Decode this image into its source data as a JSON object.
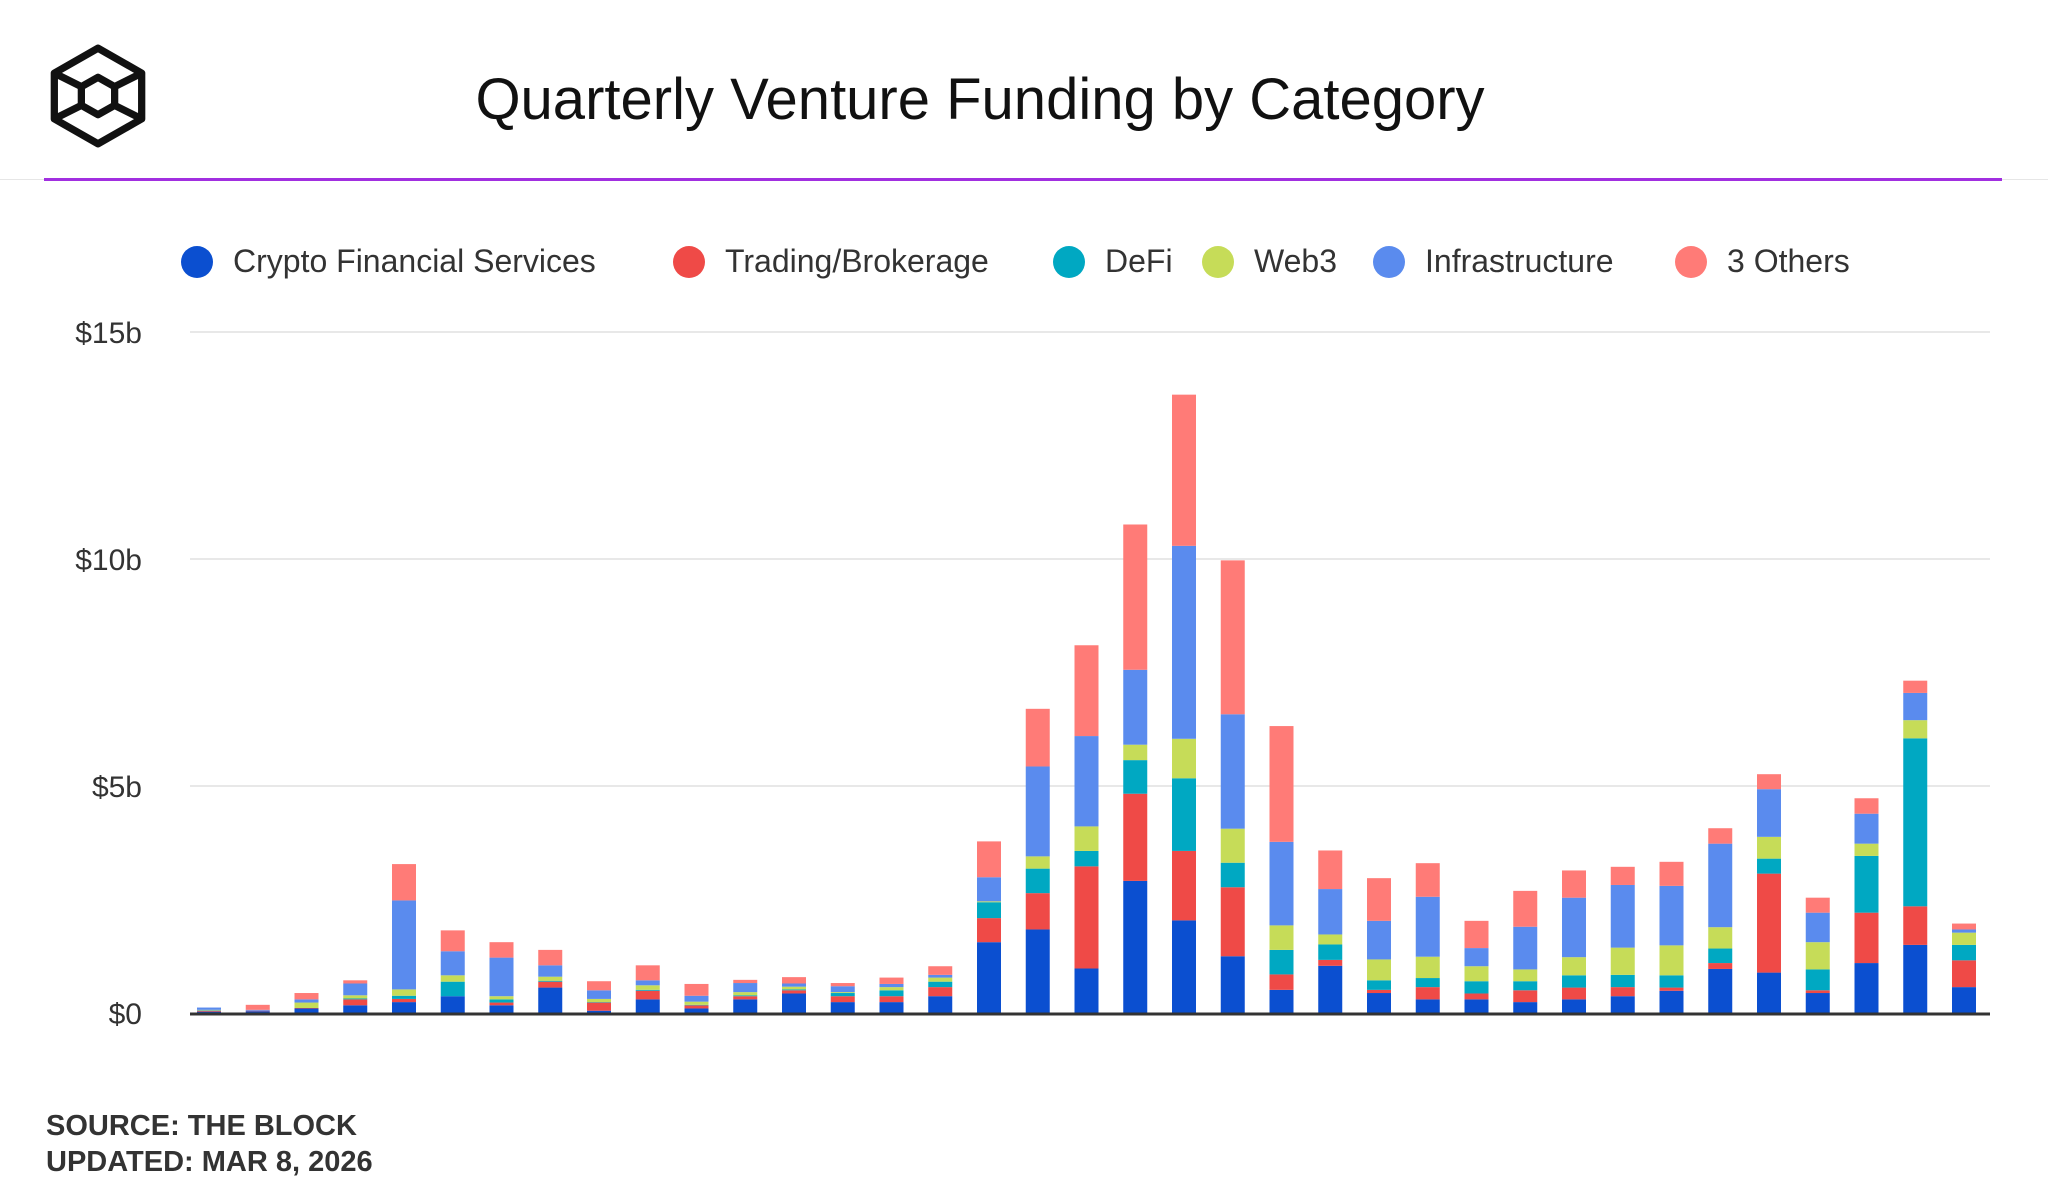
{
  "title": "Quarterly Venture Funding by Category",
  "source": {
    "line1": "SOURCE: THE BLOCK",
    "line2": "UPDATED: MAR 8, 2026"
  },
  "logo": {
    "icon": "the-block-cube-logo"
  },
  "colors": {
    "accent_rule": "#a12fe0"
  },
  "chart_data": {
    "type": "bar",
    "stacked": true,
    "title": "Quarterly Venture Funding by Category",
    "xlabel": "",
    "ylabel": "",
    "ylim": [
      0,
      15
    ],
    "yticks": [
      0,
      5,
      10,
      15
    ],
    "ytick_labels": [
      "$0",
      "$5b",
      "$10b",
      "$15b"
    ],
    "grid": true,
    "legend_position": "top",
    "units": "billions USD",
    "series": [
      {
        "name": "Crypto Financial Services",
        "color": "#0b4fd0",
        "values": [
          0.03,
          0.04,
          0.1,
          0.17,
          0.24,
          0.37,
          0.17,
          0.56,
          0.05,
          0.3,
          0.1,
          0.3,
          0.43,
          0.24,
          0.24,
          0.37,
          1.56,
          1.84,
          0.98,
          2.91,
          2.04,
          1.25,
          0.51,
          1.04,
          0.44,
          0.3,
          0.3,
          0.24,
          0.3,
          0.37,
          0.49,
          0.97,
          0.89,
          0.44,
          1.1,
          1.5,
          0.57
        ]
      },
      {
        "name": "Trading/Brokerage",
        "color": "#ef4a47",
        "values": [
          0.02,
          0.01,
          0.01,
          0.13,
          0.07,
          0.0,
          0.06,
          0.13,
          0.18,
          0.19,
          0.07,
          0.07,
          0.07,
          0.13,
          0.13,
          0.2,
          0.53,
          0.8,
          2.25,
          1.92,
          1.53,
          1.52,
          0.34,
          0.13,
          0.07,
          0.27,
          0.13,
          0.26,
          0.26,
          0.2,
          0.07,
          0.13,
          2.18,
          0.06,
          1.11,
          0.85,
          0.59
        ]
      },
      {
        "name": "DeFi",
        "color": "#00a8c2",
        "values": [
          0.01,
          0.0,
          0.0,
          0.02,
          0.07,
          0.32,
          0.07,
          0.02,
          0.01,
          0.02,
          0.01,
          0.02,
          0.02,
          0.07,
          0.13,
          0.12,
          0.35,
          0.54,
          0.34,
          0.74,
          1.6,
          0.54,
          0.54,
          0.34,
          0.21,
          0.2,
          0.27,
          0.2,
          0.27,
          0.27,
          0.27,
          0.32,
          0.33,
          0.46,
          1.25,
          3.7,
          0.34
        ]
      },
      {
        "name": "Web3",
        "color": "#c6dc58",
        "values": [
          0.01,
          0.0,
          0.12,
          0.07,
          0.14,
          0.14,
          0.07,
          0.09,
          0.07,
          0.1,
          0.07,
          0.07,
          0.06,
          0.02,
          0.07,
          0.09,
          0.02,
          0.27,
          0.54,
          0.34,
          0.87,
          0.75,
          0.54,
          0.22,
          0.46,
          0.47,
          0.33,
          0.26,
          0.4,
          0.6,
          0.66,
          0.47,
          0.48,
          0.6,
          0.27,
          0.4,
          0.27
        ]
      },
      {
        "name": "Infrastructure",
        "color": "#5a8bee",
        "values": [
          0.05,
          0.02,
          0.07,
          0.26,
          1.96,
          0.53,
          0.85,
          0.25,
          0.19,
          0.11,
          0.13,
          0.2,
          0.07,
          0.13,
          0.07,
          0.06,
          0.53,
          1.98,
          1.99,
          1.65,
          4.25,
          2.52,
          1.84,
          1.0,
          0.85,
          1.32,
          0.4,
          0.94,
          1.31,
          1.38,
          1.31,
          1.84,
          1.05,
          0.65,
          0.66,
          0.6,
          0.07
        ]
      },
      {
        "name": "3 Others",
        "color": "#ff7b77",
        "values": [
          0.0,
          0.11,
          0.14,
          0.07,
          0.8,
          0.46,
          0.34,
          0.34,
          0.2,
          0.33,
          0.26,
          0.07,
          0.14,
          0.07,
          0.14,
          0.19,
          0.79,
          1.27,
          2.0,
          3.2,
          3.33,
          3.39,
          2.55,
          0.85,
          0.94,
          0.74,
          0.6,
          0.79,
          0.6,
          0.4,
          0.53,
          0.34,
          0.33,
          0.33,
          0.34,
          0.27,
          0.13
        ]
      }
    ]
  }
}
